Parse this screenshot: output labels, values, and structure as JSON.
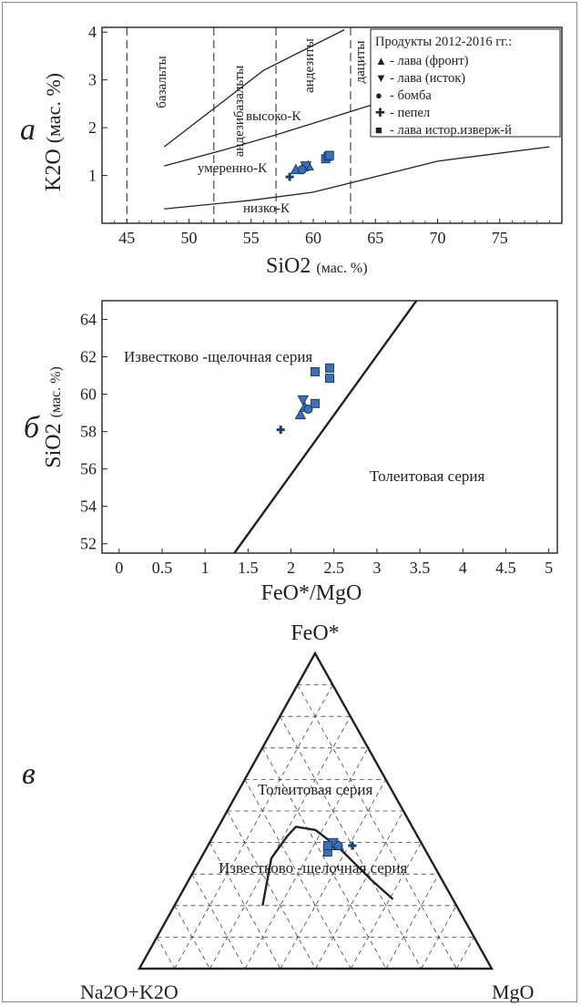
{
  "panel_a": {
    "letter": "а",
    "ylabel_main": "K2O",
    "ylabel_unit": "(мас. %)",
    "xlabel_main": "SiO2",
    "xlabel_unit": "(мас. %)",
    "legend": {
      "title": "Продукты 2012-2016 гг.:",
      "items": [
        {
          "symbol": "▲",
          "label": "- лава (фронт)"
        },
        {
          "symbol": "▼",
          "label": "- лава (исток)"
        },
        {
          "symbol": "●",
          "label": "- бомба"
        },
        {
          "symbol": "✚",
          "label": "- пепел"
        },
        {
          "symbol": "■",
          "label": "- лава истор.изверж-й"
        }
      ]
    },
    "rock_labels": [
      "базальты",
      "андезибазальты",
      "андезиты",
      "дациты"
    ],
    "series_labels": [
      "высоко-К",
      "умеренно-К",
      "низко-К"
    ]
  },
  "panel_b": {
    "letter": "б",
    "ylabel_main": "SiO2",
    "ylabel_unit": "(мас. %)",
    "xlabel": "FeO*/MgO",
    "region_labels": [
      "Известково -щелочная серия",
      "Толеитовая серия"
    ]
  },
  "panel_c": {
    "letter": "в",
    "apex_top": "FeO*",
    "apex_left": "Na2O+K2O",
    "apex_right": "MgO",
    "region_labels": [
      "Толеитовая серия",
      "Известково -щелочная серия"
    ]
  },
  "colors": {
    "marker_fill": "#3d6fb6",
    "marker_edge": "#1f3d6e",
    "line": "#222222"
  },
  "chart_data": [
    {
      "type": "scatter",
      "xlim": [
        43,
        80
      ],
      "ylim": [
        0,
        4.1
      ],
      "x_ticks": [
        45,
        50,
        55,
        60,
        65,
        70,
        75
      ],
      "y_ticks": [
        1,
        2,
        3,
        4
      ],
      "vertical_boundaries": [
        45,
        52,
        57,
        63
      ],
      "boundary_lines": [
        [
          [
            48,
            0.3
          ],
          [
            55,
            0.48
          ],
          [
            60,
            0.65
          ],
          [
            70,
            1.3
          ],
          [
            79,
            1.6
          ]
        ],
        [
          [
            48,
            1.2
          ],
          [
            53,
            1.55
          ],
          [
            57,
            1.85
          ],
          [
            65,
            2.5
          ],
          [
            70,
            2.85
          ]
        ],
        [
          [
            48,
            1.6
          ],
          [
            54,
            2.8
          ],
          [
            56,
            3.2
          ],
          [
            62.5,
            4.05
          ]
        ]
      ],
      "series": [
        {
          "name": "лава (фронт)",
          "marker": "triangle-up",
          "points": [
            [
              58.6,
              1.12
            ],
            [
              59.2,
              1.18
            ],
            [
              59.6,
              1.2
            ]
          ]
        },
        {
          "name": "лава (исток)",
          "marker": "triangle-down",
          "points": [
            [
              59.4,
              1.2
            ]
          ]
        },
        {
          "name": "бомба",
          "marker": "circle",
          "points": [
            [
              59.1,
              1.12
            ]
          ]
        },
        {
          "name": "пепел",
          "marker": "plus",
          "points": [
            [
              58.1,
              0.97
            ]
          ]
        },
        {
          "name": "лава истор.изверж-й",
          "marker": "square",
          "points": [
            [
              61.0,
              1.35
            ],
            [
              61.2,
              1.4
            ],
            [
              61.3,
              1.42
            ]
          ]
        }
      ]
    },
    {
      "type": "scatter",
      "xlim": [
        -0.2,
        5.1
      ],
      "ylim": [
        51.5,
        65
      ],
      "x_ticks": [
        0,
        0.5,
        1,
        1.5,
        2,
        2.5,
        3,
        3.5,
        4,
        4.5,
        5
      ],
      "y_ticks": [
        52,
        54,
        56,
        58,
        60,
        62,
        64
      ],
      "boundary_line": [
        [
          1.34,
          51.5
        ],
        [
          3.46,
          65
        ]
      ],
      "series": [
        {
          "name": "лава (фронт)",
          "marker": "triangle-up",
          "points": [
            [
              2.11,
              58.9
            ],
            [
              2.16,
              59.3
            ]
          ]
        },
        {
          "name": "лава (исток)",
          "marker": "triangle-down",
          "points": [
            [
              2.14,
              59.7
            ]
          ]
        },
        {
          "name": "бомба",
          "marker": "circle",
          "points": [
            [
              2.2,
              59.2
            ]
          ]
        },
        {
          "name": "пепел",
          "marker": "plus",
          "points": [
            [
              1.88,
              58.1
            ]
          ]
        },
        {
          "name": "лава истор.изверж-й",
          "marker": "square",
          "points": [
            [
              2.28,
              61.2
            ],
            [
              2.45,
              61.4
            ],
            [
              2.45,
              60.85
            ],
            [
              2.28,
              59.5
            ]
          ]
        }
      ]
    },
    {
      "type": "scatter",
      "projection": "ternary AFM",
      "grid_step": 0.1,
      "boundary_curve": [
        [
          0.55,
          0.2
        ],
        [
          0.45,
          0.35
        ],
        [
          0.37,
          0.42
        ],
        [
          0.33,
          0.45
        ],
        [
          0.28,
          0.44
        ],
        [
          0.24,
          0.38
        ],
        [
          0.2,
          0.28
        ],
        [
          0.17,
          0.22
        ]
      ],
      "series": [
        {
          "name": "лава (фронт)",
          "marker": "triangle-up",
          "points": [
            [
              0.25,
              0.39,
              0.36
            ],
            [
              0.24,
              0.39,
              0.37
            ]
          ]
        },
        {
          "name": "лава (исток)",
          "marker": "triangle-down",
          "points": [
            [
              0.25,
              0.4,
              0.35
            ]
          ]
        },
        {
          "name": "бомба",
          "marker": "circle",
          "points": [
            [
              0.24,
              0.39,
              0.37
            ]
          ]
        },
        {
          "name": "пепел",
          "marker": "plus",
          "points": [
            [
              0.2,
              0.39,
              0.41
            ]
          ]
        },
        {
          "name": "лава истор.изверж-й",
          "marker": "square",
          "points": [
            [
              0.28,
              0.37,
              0.35
            ],
            [
              0.27,
              0.39,
              0.34
            ]
          ]
        }
      ]
    }
  ]
}
